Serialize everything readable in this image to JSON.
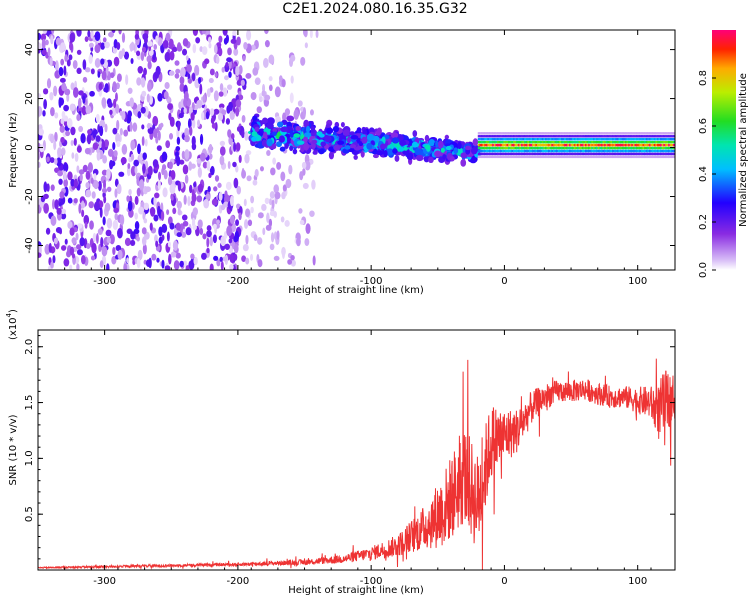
{
  "title": "C2E1.2024.080.16.35.G32",
  "chart_data": [
    {
      "type": "heatmap",
      "xlabel": "Height of straight line (km)",
      "ylabel": "Frequency (Hz)",
      "xlim": [
        -350,
        128
      ],
      "ylim": [
        -50,
        48
      ],
      "xticks": [
        -300,
        -200,
        -100,
        0,
        100
      ],
      "yticks": [
        -40,
        -20,
        0,
        20,
        40
      ],
      "colorbar": {
        "label": "Normalized spectral amplitude",
        "range": [
          0.0,
          1.0
        ],
        "ticks": [
          0.0,
          0.2,
          0.4,
          0.6,
          0.8
        ],
        "colormap": "rainbow (purple to red)"
      },
      "regions": [
        {
          "x_range": [
            -350,
            -195
          ],
          "freq_range": [
            -50,
            48
          ],
          "amplitude": [
            0.0,
            0.25
          ],
          "texture": "noise"
        },
        {
          "x_range": [
            -195,
            -140
          ],
          "freq_range": [
            -50,
            48
          ],
          "amplitude": [
            0.0,
            0.1
          ],
          "texture": "faint noise"
        },
        {
          "x_range": [
            -190,
            -20
          ],
          "freq_center": [
            6,
            -2
          ],
          "freq_halfwidth": [
            7,
            4
          ],
          "amplitude": [
            0.15,
            0.55
          ]
        },
        {
          "x_range": [
            -20,
            128
          ],
          "freq_center": 1,
          "freq_halfwidth": 3,
          "amplitude": [
            0.5,
            1.0
          ]
        }
      ],
      "grid": false
    },
    {
      "type": "line",
      "xlabel": "Height of straight line (km)",
      "ylabel": "SNR (10 * v/v)",
      "y_scale_label": "(x10",
      "y_scale_exp": "4",
      "y_scale_suffix": ")",
      "xlim": [
        -350,
        128
      ],
      "ylim": [
        0.0,
        2.15
      ],
      "xticks": [
        -300,
        -200,
        -100,
        0,
        100
      ],
      "yticks": [
        0.5,
        1.0,
        1.5,
        2.0
      ],
      "series": [
        {
          "color": "#ee3333",
          "x": [
            -350,
            -300,
            -250,
            -200,
            -150,
            -120,
            -100,
            -80,
            -60,
            -45,
            -30,
            -20,
            -10,
            0,
            10,
            20,
            30,
            40,
            50,
            60,
            70,
            80,
            90,
            100,
            110,
            115,
            120,
            128
          ],
          "y": [
            0.02,
            0.03,
            0.04,
            0.05,
            0.07,
            0.1,
            0.15,
            0.22,
            0.38,
            0.55,
            0.85,
            0.6,
            1.15,
            1.2,
            1.25,
            1.45,
            1.55,
            1.6,
            1.6,
            1.62,
            1.58,
            1.55,
            1.55,
            1.52,
            1.5,
            1.4,
            1.5,
            1.55
          ],
          "noise": [
            0.005,
            0.01,
            0.012,
            0.015,
            0.025,
            0.04,
            0.06,
            0.1,
            0.2,
            0.35,
            0.45,
            0.45,
            0.35,
            0.25,
            0.2,
            0.15,
            0.12,
            0.1,
            0.1,
            0.1,
            0.1,
            0.1,
            0.1,
            0.12,
            0.15,
            0.25,
            0.3,
            0.2
          ]
        }
      ],
      "grid": false
    }
  ]
}
